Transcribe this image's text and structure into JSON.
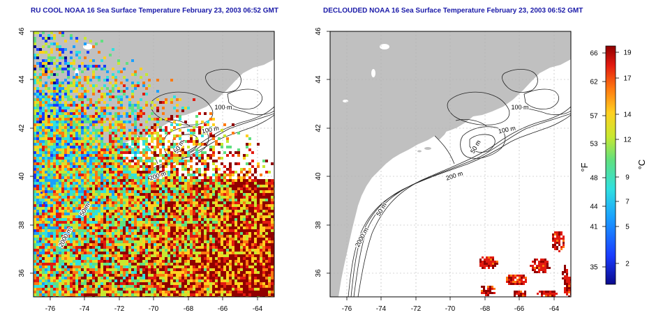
{
  "panels": [
    {
      "id": "left",
      "title": "RU COOL NOAA 16 Sea Surface Temperature February 23, 2003 06:52 GMT"
    },
    {
      "id": "right",
      "title": "DECLOUDED NOAA 16 Sea Surface Temperature February 23, 2003 06:52 GMT"
    }
  ],
  "axes": {
    "lon_ticks": [
      "-76",
      "-74",
      "-72",
      "-70",
      "-68",
      "-66",
      "-64"
    ],
    "lat_ticks": [
      "46",
      "44",
      "42",
      "40",
      "38",
      "36"
    ]
  },
  "contour_labels": {
    "left": [
      "100 m",
      "100 m",
      "50 m",
      "200 m",
      "50 m",
      "2000 m"
    ],
    "right": [
      "100 m",
      "100 m",
      "50 m",
      "200 m",
      "50 m",
      "2000 m"
    ]
  },
  "colorbar": {
    "f_label": "°F",
    "c_label": "°C",
    "f_ticks": [
      "66",
      "62",
      "57",
      "53",
      "48",
      "44",
      "41",
      "35"
    ],
    "c_ticks": [
      "19",
      "17",
      "14",
      "12",
      "9",
      "7",
      "5",
      "2"
    ]
  },
  "colors": {
    "land": "#c0c0c0",
    "ocean": "#ffffff",
    "title": "#1a1aa8",
    "contour": "#000000",
    "grid": "#bbbbbb"
  }
}
